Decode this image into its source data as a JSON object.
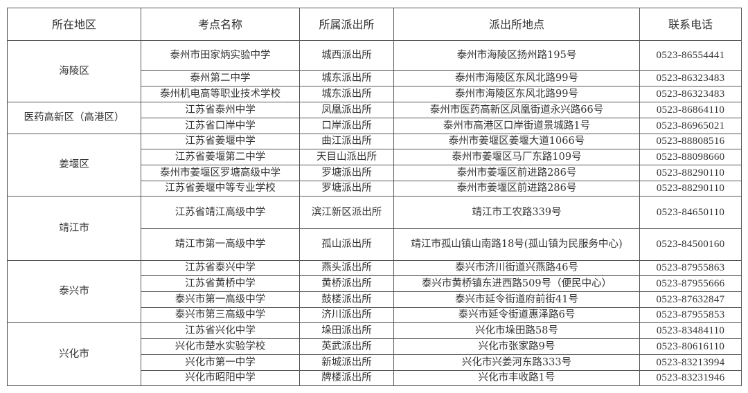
{
  "headers": [
    "所在地区",
    "考点名称",
    "所属派出所",
    "派出所地点",
    "联系电话"
  ],
  "groups": [
    {
      "region": "海陵区",
      "rows": [
        {
          "school": "泰州市田家炳实验中学",
          "station": "城西派出所",
          "address": "泰州市海陵区扬州路195号",
          "phone": "0523-86554441"
        },
        {
          "school": "泰州第二中学",
          "station": "城东派出所",
          "address": "泰州市海陵区东风北路99号",
          "phone": "0523-86323483"
        },
        {
          "school": "泰州机电高等职业技术学校",
          "station": "城东派出所",
          "address": "泰州市海陵区东风北路99号",
          "phone": "0523-86323483"
        }
      ]
    },
    {
      "region": "医药高新区（高港区）",
      "rows": [
        {
          "school": "江苏省泰州中学",
          "station": "凤凰派出所",
          "address": "泰州市医药高新区凤凰街道永兴路66号",
          "phone": "0523-86864110"
        },
        {
          "school": "江苏省口岸中学",
          "station": "口岸派出所",
          "address": "泰州市高港区口岸街道景城路1号",
          "phone": "0523-86965021"
        }
      ]
    },
    {
      "region": "姜堰区",
      "rows": [
        {
          "school": "江苏省姜堰中学",
          "station": "曲江派出所",
          "address": "泰州市姜堰区姜堰大道1066号",
          "phone": "0523-88808516"
        },
        {
          "school": "江苏省姜堰第二中学",
          "station": "天目山派出所",
          "address": "泰州市姜堰区马厂东路109号",
          "phone": "0523-88098660"
        },
        {
          "school": "泰州市姜堰区罗塘高级中学",
          "station": "罗塘派出所",
          "address": "泰州市姜堰区前进路286号",
          "phone": "0523-88290110"
        },
        {
          "school": "江苏省姜堰中等专业学校",
          "station": "罗塘派出所",
          "address": "泰州市姜堰区前进路286号",
          "phone": "0523-88290110"
        }
      ]
    },
    {
      "region": "靖江市",
      "rows": [
        {
          "school": "江苏省靖江高级中学",
          "station": "滨江新区派出所",
          "address": "靖江市工农路339号",
          "phone": "0523-84650110"
        },
        {
          "school": "靖江市第一高级中学",
          "station": "孤山派出所",
          "address": "靖江市孤山镇山南路18号(孤山镇为民服务中心)",
          "phone": "0523-84500160"
        }
      ]
    },
    {
      "region": "泰兴市",
      "rows": [
        {
          "school": "江苏省泰兴中学",
          "station": "燕头派出所",
          "address": "泰兴市济川街道兴燕路46号",
          "phone": "0523-87955863"
        },
        {
          "school": "江苏省黄桥中学",
          "station": "黄桥派出所",
          "address": "泰兴市黄桥镇东进西路509号（便民中心）",
          "phone": "0523-87955666"
        },
        {
          "school": "泰兴市第一高级中学",
          "station": "鼓楼派出所",
          "address": "泰兴市延令街道府前街41号",
          "phone": "0523-87632847"
        },
        {
          "school": "泰兴市第三高级中学",
          "station": "济川派出所",
          "address": "泰兴市延令街道惠泽路6号",
          "phone": "0523-87955853"
        }
      ]
    },
    {
      "region": "兴化市",
      "rows": [
        {
          "school": "江苏省兴化中学",
          "station": "垛田派出所",
          "address": "兴化市垛田路58号",
          "phone": "0523-83484110"
        },
        {
          "school": "兴化市楚水实验学校",
          "station": "英武派出所",
          "address": "兴化市张家路9号",
          "phone": "0523-80616110"
        },
        {
          "school": "兴化市第一中学",
          "station": "新城派出所",
          "address": "兴化市兴姜河东路333号",
          "phone": "0523-83213994"
        },
        {
          "school": "兴化市昭阳中学",
          "station": "牌楼派出所",
          "address": "兴化市丰收路1号",
          "phone": "0523-83231946"
        }
      ]
    }
  ]
}
